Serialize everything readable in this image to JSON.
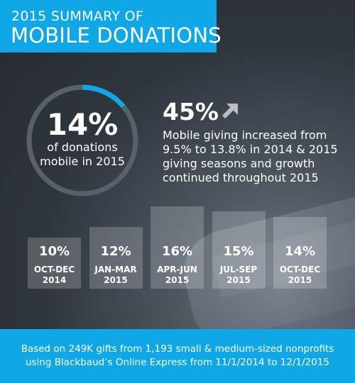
{
  "header": {
    "line1": "2015 SUMMARY OF",
    "line2": "MOBILE DONATIONS"
  },
  "donut": {
    "percent": "14%",
    "value": 14,
    "line1": "of donations",
    "line2": "mobile in 2015"
  },
  "stat": {
    "value": "45%",
    "arrow_icon": "up-right-arrow-icon",
    "line1": "Mobile giving increased from",
    "line2": "9.5% to 13.8% in 2014 & 2015",
    "line3": "giving seasons and growth",
    "line4": "continued throughout 2015"
  },
  "colors": {
    "accent": "#0fa7e6",
    "bar_fill": "#ffffff",
    "ring_track": "#5a6069"
  },
  "chart_data": [
    {
      "type": "pie",
      "labels": [
        "of donations mobile in 2015"
      ],
      "values": [
        14
      ]
    },
    {
      "type": "bar",
      "categories": [
        "OCT-DEC 2014",
        "JAN-MAR 2015",
        "APR-JUN 2015",
        "JUL-SEP 2015",
        "OCT-DEC 2015"
      ],
      "period_line1": [
        "OCT-DEC",
        "JAN-MAR",
        "APR-JUN",
        "JUL-SEP",
        "OCT-DEC"
      ],
      "period_line2": [
        "2014",
        "2015",
        "2015",
        "2015",
        "2015"
      ],
      "values": [
        10,
        12,
        16,
        15,
        14
      ],
      "value_labels": [
        "10%",
        "12%",
        "16%",
        "15%",
        "14%"
      ],
      "ylim": [
        0,
        16
      ]
    }
  ],
  "footer": {
    "line1": "Based on 249K gifts from 1,193 small & medium-sized nonprofits",
    "line2": "using Blackbaud’s Online Express from 11/1/2014 to 12/1/2015"
  }
}
